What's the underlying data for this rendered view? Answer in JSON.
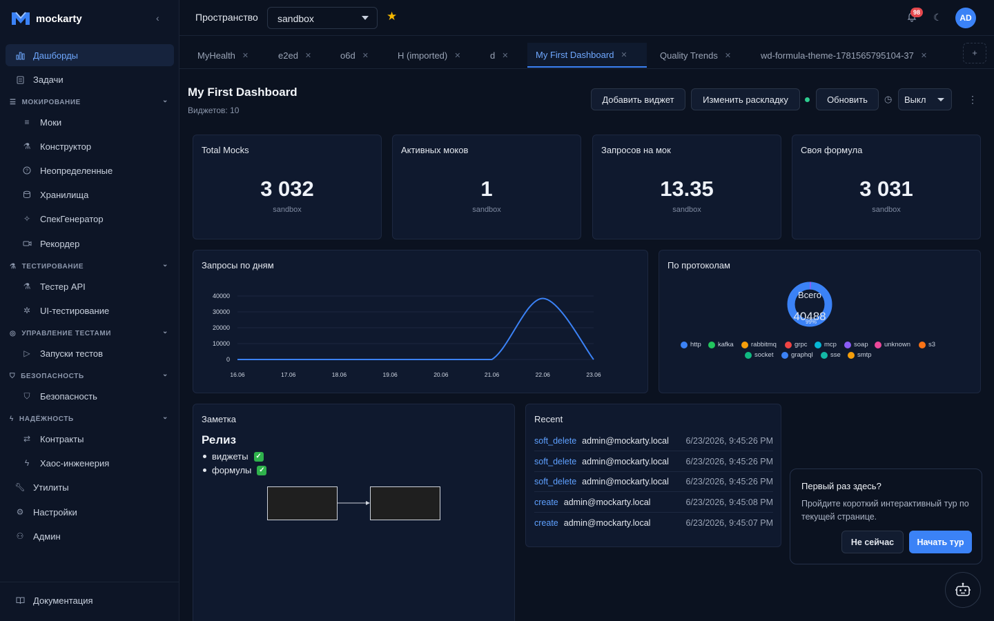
{
  "app": {
    "name": "mockarty"
  },
  "sidebar": {
    "items": {
      "dashboards": "Дашборды",
      "tasks": "Задачи",
      "mocks": "Моки",
      "constructor": "Конструктор",
      "undefined": "Неопределенные",
      "storages": "Хранилища",
      "specgen": "СпекГенератор",
      "recorder": "Рекордер",
      "api_tester": "Тестер API",
      "ui_testing": "UI-тестирование",
      "test_runs": "Запуски тестов",
      "security": "Безопасность",
      "contracts": "Контракты",
      "chaos": "Хаос-инженерия",
      "utilities": "Утилиты",
      "settings": "Настройки",
      "admin": "Админ",
      "docs": "Документация"
    },
    "groups": {
      "mocking": "МОКИРОВАНИЕ",
      "testing": "ТЕСТИРОВАНИЕ",
      "test_mgmt": "УПРАВЛЕНИЕ ТЕСТАМИ",
      "security": "БЕЗОПАСНОСТЬ",
      "reliability": "НАДЁЖНОСТЬ"
    }
  },
  "topbar": {
    "space_label": "Пространство",
    "space_value": "sandbox",
    "notifications": "98",
    "avatar": "AD"
  },
  "tabs": [
    "MyHealth",
    "e2ed",
    "o6d",
    "H (imported)",
    "d",
    "My First Dashboard",
    "Quality Trends",
    "wd-formula-theme-1781565795104-37"
  ],
  "tab_add": "+",
  "header": {
    "title": "My First Dashboard",
    "subtitle": "Виджетов: 10",
    "add_widget": "Добавить виджет",
    "change_layout": "Изменить раскладку",
    "refresh": "Обновить",
    "auto_refresh": "Выкл"
  },
  "stats": [
    {
      "title": "Total Mocks",
      "value": "3 032",
      "sub": "sandbox"
    },
    {
      "title": "Активных моков",
      "value": "1",
      "sub": "sandbox"
    },
    {
      "title": "Запросов на мок",
      "value": "13.35",
      "sub": "sandbox"
    },
    {
      "title": "Своя формула",
      "value": "3 031",
      "sub": "sandbox"
    }
  ],
  "line_card": {
    "title": "Запросы по дням",
    "y_ticks": [
      "40000",
      "30000",
      "20000",
      "10000",
      "0"
    ],
    "x_ticks": [
      "16.06",
      "17.06",
      "18.06",
      "19.06",
      "20.06",
      "21.06",
      "22.06",
      "23.06"
    ]
  },
  "donut_card": {
    "title": "По протоколам",
    "center_label": "Всего",
    "center_value": "40488",
    "center_pct": "99%",
    "legend": [
      {
        "name": "http",
        "color": "#3b82f6"
      },
      {
        "name": "kafka",
        "color": "#22c55e"
      },
      {
        "name": "rabbitmq",
        "color": "#f59e0b"
      },
      {
        "name": "grpc",
        "color": "#ef4444"
      },
      {
        "name": "mcp",
        "color": "#06b6d4"
      },
      {
        "name": "soap",
        "color": "#8b5cf6"
      },
      {
        "name": "unknown",
        "color": "#ec4899"
      },
      {
        "name": "s3",
        "color": "#f97316"
      },
      {
        "name": "socket",
        "color": "#10b981"
      },
      {
        "name": "graphql",
        "color": "#3b82f6"
      },
      {
        "name": "sse",
        "color": "#14b8a6"
      },
      {
        "name": "smtp",
        "color": "#f59e0b"
      }
    ]
  },
  "note_card": {
    "title": "Заметка",
    "heading": "Релиз",
    "items": [
      "виджеты",
      "формулы"
    ],
    "check": "✓"
  },
  "recent_card": {
    "title": "Recent",
    "rows": [
      {
        "action": "soft_delete",
        "user": "admin@mockarty.local",
        "time": "6/23/2026, 9:45:26 PM"
      },
      {
        "action": "soft_delete",
        "user": "admin@mockarty.local",
        "time": "6/23/2026, 9:45:26 PM"
      },
      {
        "action": "soft_delete",
        "user": "admin@mockarty.local",
        "time": "6/23/2026, 9:45:26 PM"
      },
      {
        "action": "create",
        "user": "admin@mockarty.local",
        "time": "6/23/2026, 9:45:08 PM"
      },
      {
        "action": "create",
        "user": "admin@mockarty.local",
        "time": "6/23/2026, 9:45:07 PM"
      }
    ]
  },
  "tour": {
    "title": "Первый раз здесь?",
    "text": "Пройдите короткий интерактивный тур по текущей странице.",
    "later": "Не сейчас",
    "start": "Начать тур"
  },
  "chart_data": {
    "type": "line",
    "x": [
      "16.06",
      "17.06",
      "18.06",
      "19.06",
      "20.06",
      "21.06",
      "22.06",
      "23.06"
    ],
    "series": [
      {
        "values": [
          0,
          0,
          0,
          0,
          0,
          0,
          38500,
          0
        ]
      }
    ],
    "ylim": [
      0,
      40000
    ],
    "grid": true,
    "color": "#3b82f6"
  }
}
